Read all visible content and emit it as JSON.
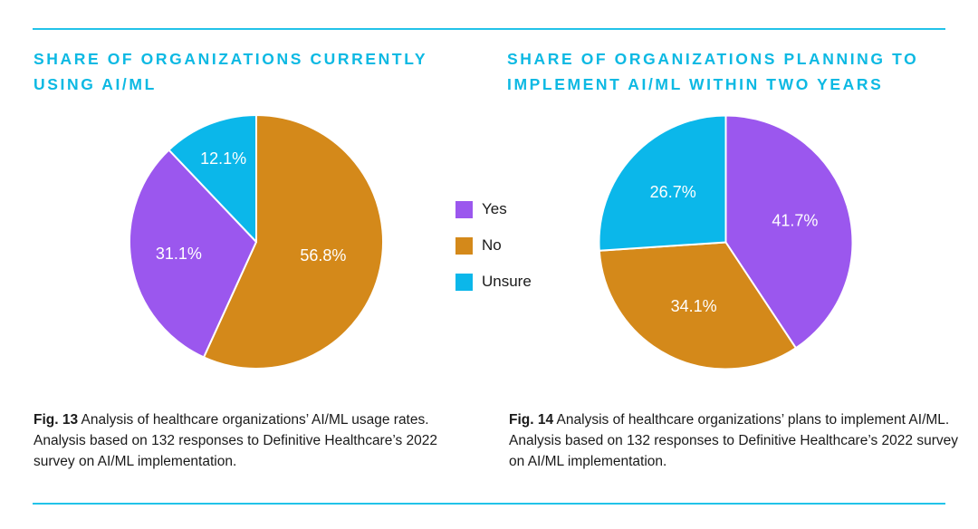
{
  "colors": {
    "yes": "#9b57ee",
    "no": "#d4891a",
    "unsure": "#0bb7ea",
    "accent": "#0db9e3"
  },
  "legend": [
    {
      "label": "Yes",
      "color": "#9b57ee"
    },
    {
      "label": "No",
      "color": "#d4891a"
    },
    {
      "label": "Unsure",
      "color": "#0bb7ea"
    }
  ],
  "chart_data": [
    {
      "type": "pie",
      "title": "SHARE OF ORGANIZATIONS CURRENTLY USING AI/ML",
      "categories": [
        "Yes",
        "No",
        "Unsure"
      ],
      "values": [
        31.1,
        56.8,
        12.1
      ],
      "labels": [
        "31.1%",
        "56.8%",
        "12.1%"
      ]
    },
    {
      "type": "pie",
      "title": "SHARE OF ORGANIZATIONS PLANNING TO IMPLEMENT AI/ML WITHIN TWO YEARS",
      "categories": [
        "Yes",
        "No",
        "Unsure"
      ],
      "values": [
        41.7,
        34.1,
        26.7
      ],
      "labels": [
        "41.7%",
        "34.1%",
        "26.7%"
      ]
    }
  ],
  "captions": [
    {
      "fig": "Fig. 13",
      "text": " Analysis of healthcare organizations’ AI/ML usage rates. Analysis based on 132 responses to Definitive Healthcare’s 2022 survey on AI/ML implementation."
    },
    {
      "fig": "Fig. 14",
      "text": "  Analysis of healthcare organizations’ plans to implement AI/ML. Analysis based on 132 responses to Definitive Healthcare’s 2022 survey on AI/ML implementation."
    }
  ]
}
